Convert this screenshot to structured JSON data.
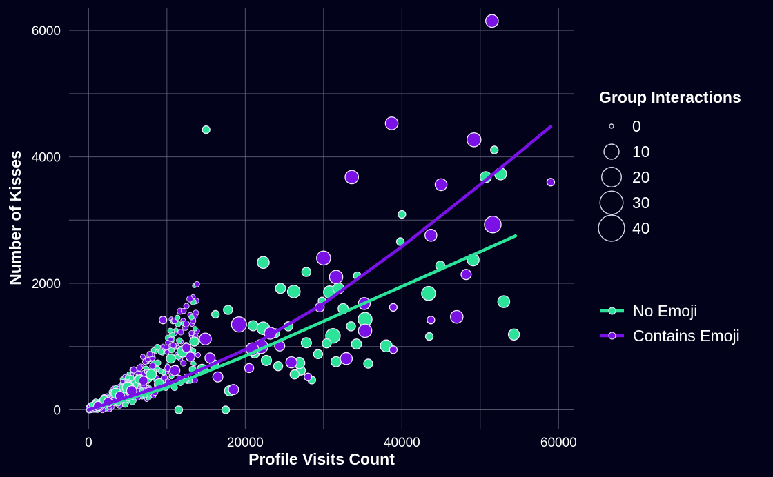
{
  "chart_data": {
    "type": "scatter",
    "xlabel": "Profile Visits Count",
    "ylabel": "Number of Kisses",
    "xlim": [
      -2500,
      62000
    ],
    "ylim": [
      -300,
      6350
    ],
    "x_ticks": [
      0,
      20000,
      40000,
      60000
    ],
    "x_tick_labels": [
      "0",
      "20000",
      "40000",
      "60000"
    ],
    "y_ticks": [
      0,
      2000,
      4000,
      6000
    ],
    "y_tick_labels": [
      "0",
      "2000",
      "4000",
      "6000"
    ],
    "grid": true,
    "background": "#02021a",
    "grid_color": "#6f6f85",
    "legend_position": "right",
    "size_legend": {
      "title": "Group Interactions",
      "values": [
        0,
        10,
        20,
        30,
        40
      ],
      "labels": [
        "0",
        "10",
        "20",
        "30",
        "40"
      ]
    },
    "series": [
      {
        "name": "No Emoji",
        "color": "#2de39a",
        "trend": [
          [
            0,
            0
          ],
          [
            10000,
            350
          ],
          [
            20000,
            850
          ],
          [
            30000,
            1400
          ],
          [
            40000,
            1950
          ],
          [
            50000,
            2500
          ],
          [
            54500,
            2750
          ]
        ],
        "points": [
          [
            15000,
            4430,
            1
          ],
          [
            22300,
            2330,
            5
          ],
          [
            27800,
            2180,
            2
          ],
          [
            30800,
            1860,
            6
          ],
          [
            31900,
            1920,
            4
          ],
          [
            24500,
            1920,
            3
          ],
          [
            26200,
            1870,
            6
          ],
          [
            29800,
            1720,
            1
          ],
          [
            32500,
            1600,
            3
          ],
          [
            33500,
            1320,
            2
          ],
          [
            35300,
            1430,
            8
          ],
          [
            31200,
            1170,
            9
          ],
          [
            34200,
            1040,
            3
          ],
          [
            30400,
            1050,
            2
          ],
          [
            38000,
            1010,
            5
          ],
          [
            27100,
            620,
            2
          ],
          [
            26900,
            740,
            4
          ],
          [
            31600,
            760,
            3
          ],
          [
            35700,
            730,
            2
          ],
          [
            43400,
            1840,
            8
          ],
          [
            43500,
            1160,
            1
          ],
          [
            40000,
            3090,
            1
          ],
          [
            39800,
            2660,
            1
          ],
          [
            44900,
            2280,
            2
          ],
          [
            49100,
            2370,
            5
          ],
          [
            50700,
            3680,
            4
          ],
          [
            51800,
            4110,
            1
          ],
          [
            52600,
            3730,
            5
          ],
          [
            53000,
            1710,
            5
          ],
          [
            54300,
            1190,
            4
          ],
          [
            34300,
            2120,
            1
          ],
          [
            17800,
            1580,
            2
          ],
          [
            16200,
            1510,
            1
          ],
          [
            19500,
            1380,
            2
          ],
          [
            21000,
            1330,
            3
          ],
          [
            22300,
            1290,
            6
          ],
          [
            23800,
            1210,
            2
          ],
          [
            25500,
            1320,
            2
          ],
          [
            27800,
            1060,
            3
          ],
          [
            29300,
            880,
            2
          ],
          [
            21200,
            890,
            2
          ],
          [
            22700,
            780,
            3
          ],
          [
            24200,
            690,
            2
          ],
          [
            26300,
            560,
            2
          ],
          [
            28500,
            470,
            1
          ],
          [
            18000,
            300,
            3
          ],
          [
            17500,
            0,
            1
          ],
          [
            11500,
            0,
            1
          ],
          [
            12000,
            920,
            4
          ],
          [
            10500,
            810,
            2
          ],
          [
            8000,
            560,
            3
          ],
          [
            6500,
            480,
            2
          ],
          [
            5000,
            350,
            4
          ],
          [
            3500,
            260,
            3
          ],
          [
            2000,
            150,
            2
          ],
          [
            1000,
            80,
            2
          ],
          [
            13500,
            1080,
            2
          ],
          [
            14500,
            640,
            3
          ],
          [
            16000,
            720,
            2
          ],
          [
            9000,
            420,
            2
          ]
        ]
      },
      {
        "name": "Contains Emoji",
        "color": "#7a12e6",
        "trend": [
          [
            0,
            0
          ],
          [
            10000,
            400
          ],
          [
            20000,
            950
          ],
          [
            30000,
            1680
          ],
          [
            40000,
            2580
          ],
          [
            50000,
            3560
          ],
          [
            59000,
            4480
          ]
        ],
        "points": [
          [
            51500,
            6150,
            6
          ],
          [
            38700,
            4530,
            6
          ],
          [
            33600,
            3680,
            7
          ],
          [
            49200,
            4270,
            8
          ],
          [
            45000,
            3560,
            5
          ],
          [
            51600,
            2930,
            13
          ],
          [
            43700,
            2760,
            5
          ],
          [
            30000,
            2400,
            8
          ],
          [
            31600,
            2100,
            7
          ],
          [
            35200,
            1680,
            5
          ],
          [
            35300,
            1250,
            7
          ],
          [
            32900,
            810,
            5
          ],
          [
            48200,
            2140,
            3
          ],
          [
            47000,
            1470,
            6
          ],
          [
            38900,
            1620,
            1
          ],
          [
            43700,
            1420,
            1
          ],
          [
            38900,
            950,
            1
          ],
          [
            59000,
            3600,
            1
          ],
          [
            19200,
            1350,
            10
          ],
          [
            14900,
            1120,
            5
          ],
          [
            23200,
            1210,
            5
          ],
          [
            22000,
            1000,
            8
          ],
          [
            20900,
            960,
            6
          ],
          [
            25900,
            750,
            4
          ],
          [
            24400,
            1010,
            3
          ],
          [
            9500,
            1420,
            1
          ],
          [
            13000,
            840,
            2
          ],
          [
            11000,
            620,
            3
          ],
          [
            7000,
            460,
            2
          ],
          [
            5500,
            300,
            3
          ],
          [
            4000,
            220,
            2
          ],
          [
            2500,
            120,
            2
          ],
          [
            1200,
            60,
            2
          ],
          [
            18500,
            320,
            3
          ],
          [
            16500,
            520,
            3
          ],
          [
            20500,
            660,
            2
          ],
          [
            28000,
            520,
            1
          ],
          [
            29500,
            1620,
            2
          ],
          [
            15500,
            820,
            3
          ],
          [
            12500,
            980,
            2
          ]
        ]
      }
    ],
    "cloud": {
      "x_max": 14000,
      "count": 420,
      "density_note": "dense small markers near origin for both series"
    }
  }
}
